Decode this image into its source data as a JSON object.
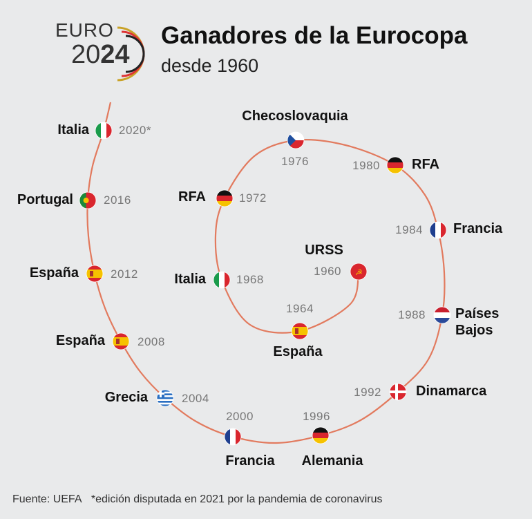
{
  "logo": {
    "line1": "EURO",
    "line2a": "20",
    "line2b": "24"
  },
  "header": {
    "title": "Ganadores de la Eurocopa",
    "subtitle": "desde 1960"
  },
  "winners": [
    {
      "country": "URSS",
      "year": "1960"
    },
    {
      "country": "España",
      "year": "1964"
    },
    {
      "country": "Italia",
      "year": "1968"
    },
    {
      "country": "RFA",
      "year": "1972"
    },
    {
      "country": "Checoslovaquia",
      "year": "1976"
    },
    {
      "country": "RFA",
      "year": "1980"
    },
    {
      "country": "Francia",
      "year": "1984"
    },
    {
      "country": "Países Bajos",
      "year": "1988"
    },
    {
      "country": "Dinamarca",
      "year": "1992"
    },
    {
      "country": "Alemania",
      "year": "1996"
    },
    {
      "country": "Francia",
      "year": "2000"
    },
    {
      "country": "Grecia",
      "year": "2004"
    },
    {
      "country": "España",
      "year": "2008"
    },
    {
      "country": "España",
      "year": "2012"
    },
    {
      "country": "Portugal",
      "year": "2016"
    },
    {
      "country": "Italia",
      "year": "2020*"
    }
  ],
  "footer": {
    "source": "Fuente: UEFA",
    "note": "*edición disputada en 2021 por la pandemia de coronavirus"
  }
}
